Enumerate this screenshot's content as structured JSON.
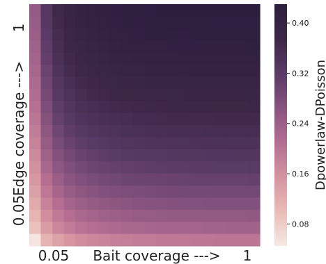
{
  "chart_data": {
    "type": "heatmap",
    "rows": 20,
    "cols": 20,
    "row_order": "top-to-bottom: edge coverage high to low",
    "col_order": "left-to-right: bait coverage low to high",
    "x_tick_low": "0.05",
    "x_tick_high": "1",
    "x_axis_text": "Bait coverage --->",
    "y_tick_low": "0.05",
    "y_tick_high": "1",
    "y_axis_text": "Edge coverage --->",
    "colorbar_label": "Dpowerlaw-DPoisson",
    "colorbar_ticks": [
      "0.08",
      "0.16",
      "0.24",
      "0.32",
      "0.40"
    ],
    "colorbar_tick_values": [
      0.08,
      0.16,
      0.24,
      0.32,
      0.4
    ],
    "vmin": 0.045,
    "vmax": 0.43,
    "colors": [
      "#f6e8e3",
      "#e9bcb7",
      "#d593a0",
      "#b46d92",
      "#87537f",
      "#5a3a66",
      "#3d2748",
      "#2d1e3e"
    ],
    "values": [
      [
        0.248,
        0.33,
        0.371,
        0.392,
        0.405,
        0.412,
        0.417,
        0.421,
        0.424,
        0.425,
        0.427,
        0.428,
        0.429,
        0.43,
        0.43,
        0.43,
        0.43,
        0.43,
        0.43,
        0.43
      ],
      [
        0.245,
        0.325,
        0.366,
        0.387,
        0.4,
        0.408,
        0.413,
        0.416,
        0.419,
        0.421,
        0.423,
        0.424,
        0.425,
        0.425,
        0.426,
        0.426,
        0.427,
        0.427,
        0.427,
        0.427
      ],
      [
        0.241,
        0.32,
        0.36,
        0.382,
        0.394,
        0.402,
        0.408,
        0.412,
        0.414,
        0.416,
        0.418,
        0.419,
        0.42,
        0.421,
        0.422,
        0.422,
        0.422,
        0.422,
        0.423,
        0.423
      ],
      [
        0.236,
        0.314,
        0.354,
        0.375,
        0.388,
        0.396,
        0.402,
        0.406,
        0.409,
        0.411,
        0.412,
        0.414,
        0.415,
        0.415,
        0.416,
        0.417,
        0.417,
        0.417,
        0.417,
        0.418
      ],
      [
        0.231,
        0.308,
        0.347,
        0.368,
        0.381,
        0.389,
        0.395,
        0.399,
        0.402,
        0.404,
        0.406,
        0.407,
        0.408,
        0.409,
        0.41,
        0.41,
        0.411,
        0.411,
        0.411,
        0.411
      ],
      [
        0.225,
        0.301,
        0.34,
        0.361,
        0.373,
        0.382,
        0.388,
        0.392,
        0.395,
        0.397,
        0.399,
        0.4,
        0.401,
        0.402,
        0.403,
        0.403,
        0.404,
        0.404,
        0.404,
        0.404
      ],
      [
        0.219,
        0.293,
        0.332,
        0.353,
        0.365,
        0.374,
        0.379,
        0.384,
        0.387,
        0.389,
        0.391,
        0.392,
        0.393,
        0.394,
        0.395,
        0.395,
        0.396,
        0.396,
        0.396,
        0.396
      ],
      [
        0.212,
        0.285,
        0.323,
        0.344,
        0.356,
        0.365,
        0.371,
        0.375,
        0.378,
        0.38,
        0.382,
        0.383,
        0.384,
        0.385,
        0.386,
        0.387,
        0.387,
        0.387,
        0.388,
        0.388
      ],
      [
        0.205,
        0.277,
        0.314,
        0.334,
        0.347,
        0.355,
        0.361,
        0.365,
        0.369,
        0.371,
        0.373,
        0.374,
        0.375,
        0.376,
        0.377,
        0.377,
        0.378,
        0.378,
        0.378,
        0.379
      ],
      [
        0.197,
        0.267,
        0.304,
        0.324,
        0.337,
        0.345,
        0.351,
        0.355,
        0.358,
        0.361,
        0.363,
        0.364,
        0.365,
        0.366,
        0.367,
        0.367,
        0.368,
        0.368,
        0.368,
        0.369
      ],
      [
        0.188,
        0.257,
        0.293,
        0.313,
        0.326,
        0.334,
        0.34,
        0.344,
        0.348,
        0.35,
        0.352,
        0.353,
        0.354,
        0.355,
        0.356,
        0.357,
        0.357,
        0.357,
        0.358,
        0.358
      ],
      [
        0.179,
        0.246,
        0.282,
        0.302,
        0.314,
        0.322,
        0.328,
        0.333,
        0.336,
        0.338,
        0.34,
        0.342,
        0.343,
        0.344,
        0.345,
        0.345,
        0.346,
        0.346,
        0.346,
        0.346
      ],
      [
        0.17,
        0.235,
        0.269,
        0.289,
        0.302,
        0.31,
        0.316,
        0.32,
        0.323,
        0.326,
        0.328,
        0.329,
        0.331,
        0.332,
        0.332,
        0.333,
        0.333,
        0.334,
        0.334,
        0.334
      ],
      [
        0.159,
        0.222,
        0.256,
        0.275,
        0.288,
        0.296,
        0.302,
        0.306,
        0.31,
        0.312,
        0.314,
        0.316,
        0.317,
        0.318,
        0.319,
        0.319,
        0.32,
        0.32,
        0.32,
        0.321
      ],
      [
        0.148,
        0.209,
        0.242,
        0.261,
        0.273,
        0.281,
        0.287,
        0.292,
        0.295,
        0.297,
        0.299,
        0.301,
        0.302,
        0.303,
        0.304,
        0.304,
        0.305,
        0.305,
        0.305,
        0.306
      ],
      [
        0.136,
        0.194,
        0.226,
        0.245,
        0.257,
        0.265,
        0.271,
        0.275,
        0.279,
        0.281,
        0.283,
        0.285,
        0.286,
        0.287,
        0.288,
        0.288,
        0.289,
        0.289,
        0.289,
        0.29
      ],
      [
        0.123,
        0.178,
        0.209,
        0.228,
        0.24,
        0.248,
        0.254,
        0.258,
        0.261,
        0.264,
        0.266,
        0.267,
        0.269,
        0.27,
        0.27,
        0.271,
        0.271,
        0.272,
        0.272,
        0.272
      ],
      [
        0.109,
        0.161,
        0.191,
        0.209,
        0.221,
        0.229,
        0.235,
        0.239,
        0.243,
        0.245,
        0.247,
        0.249,
        0.25,
        0.251,
        0.252,
        0.252,
        0.253,
        0.253,
        0.253,
        0.254
      ],
      [
        0.094,
        0.143,
        0.171,
        0.189,
        0.201,
        0.209,
        0.215,
        0.219,
        0.222,
        0.225,
        0.227,
        0.228,
        0.229,
        0.23,
        0.231,
        0.232,
        0.232,
        0.233,
        0.233,
        0.233
      ],
      [
        0.05,
        0.112,
        0.135,
        0.152,
        0.163,
        0.171,
        0.177,
        0.182,
        0.185,
        0.188,
        0.19,
        0.192,
        0.193,
        0.194,
        0.195,
        0.196,
        0.197,
        0.197,
        0.198,
        0.198
      ]
    ]
  }
}
